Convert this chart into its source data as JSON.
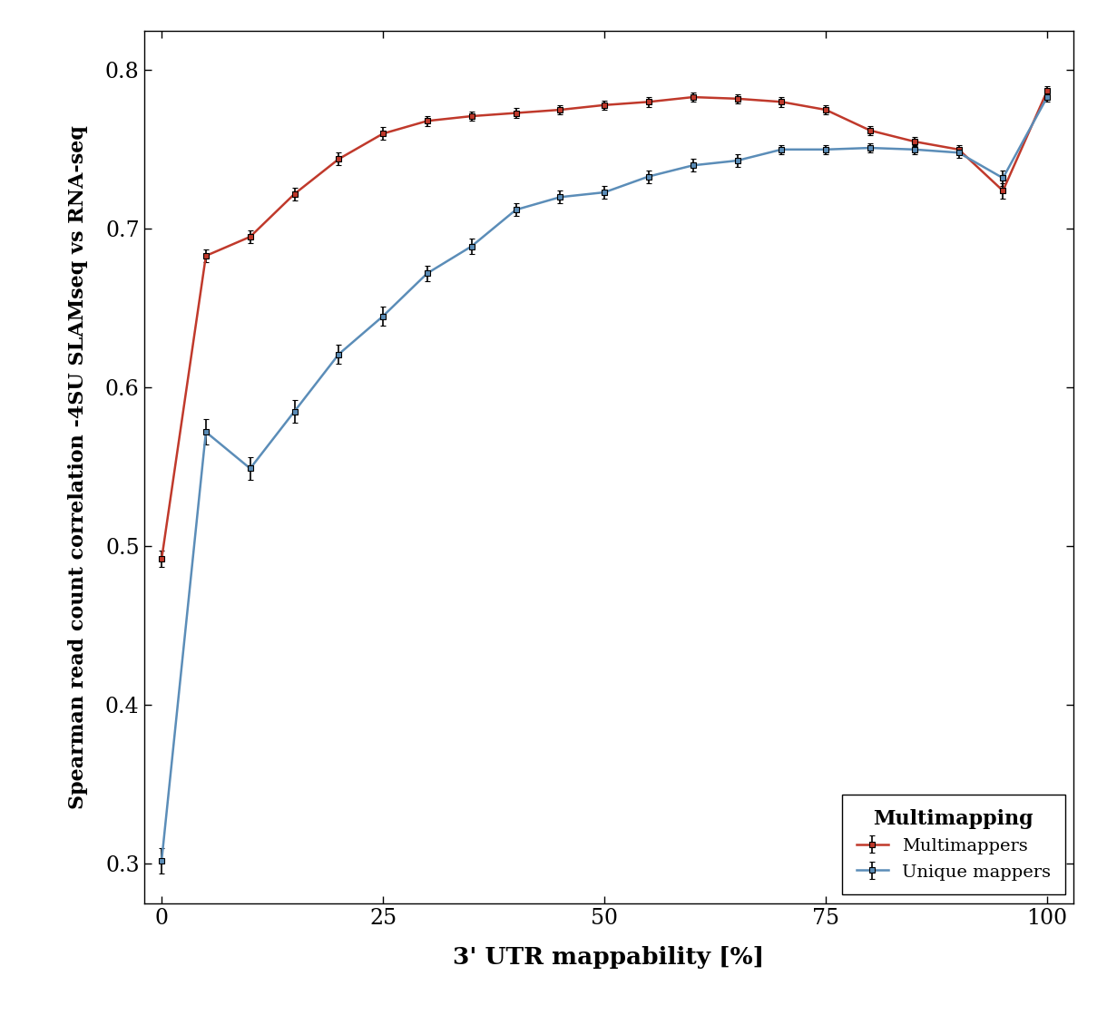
{
  "title": "",
  "xlabel": "3' UTR mappability [%]",
  "ylabel": "Spearman read count correlation -4SU SLAMseq vs RNA-seq",
  "xlim": [
    -2,
    103
  ],
  "ylim": [
    0.275,
    0.825
  ],
  "xticks": [
    0,
    25,
    50,
    75,
    100
  ],
  "yticks": [
    0.3,
    0.4,
    0.5,
    0.6,
    0.7,
    0.8
  ],
  "multimappers_x": [
    0,
    5,
    10,
    15,
    20,
    25,
    30,
    35,
    40,
    45,
    50,
    55,
    60,
    65,
    70,
    75,
    80,
    85,
    90,
    95,
    100
  ],
  "multimappers_y": [
    0.492,
    0.683,
    0.695,
    0.722,
    0.744,
    0.76,
    0.768,
    0.771,
    0.773,
    0.775,
    0.778,
    0.78,
    0.783,
    0.782,
    0.78,
    0.775,
    0.762,
    0.755,
    0.75,
    0.724,
    0.787
  ],
  "multimappers_err": [
    0.005,
    0.004,
    0.004,
    0.004,
    0.004,
    0.004,
    0.003,
    0.003,
    0.003,
    0.003,
    0.003,
    0.003,
    0.003,
    0.003,
    0.003,
    0.003,
    0.003,
    0.003,
    0.003,
    0.005,
    0.003
  ],
  "unique_x": [
    0,
    5,
    10,
    15,
    20,
    25,
    30,
    35,
    40,
    45,
    50,
    55,
    60,
    65,
    70,
    75,
    80,
    85,
    90,
    95,
    100
  ],
  "unique_y": [
    0.302,
    0.572,
    0.549,
    0.585,
    0.621,
    0.645,
    0.672,
    0.689,
    0.712,
    0.72,
    0.723,
    0.733,
    0.74,
    0.743,
    0.75,
    0.75,
    0.751,
    0.75,
    0.748,
    0.732,
    0.783
  ],
  "unique_err": [
    0.008,
    0.008,
    0.007,
    0.007,
    0.006,
    0.006,
    0.005,
    0.005,
    0.004,
    0.004,
    0.004,
    0.004,
    0.004,
    0.004,
    0.003,
    0.003,
    0.003,
    0.003,
    0.003,
    0.005,
    0.003
  ],
  "multimappers_color": "#C0392B",
  "unique_color": "#5B8DB8",
  "legend_title": "Multimapping",
  "legend_label_multi": "Multimappers",
  "legend_label_unique": "Unique mappers",
  "background_color": "#FFFFFF"
}
